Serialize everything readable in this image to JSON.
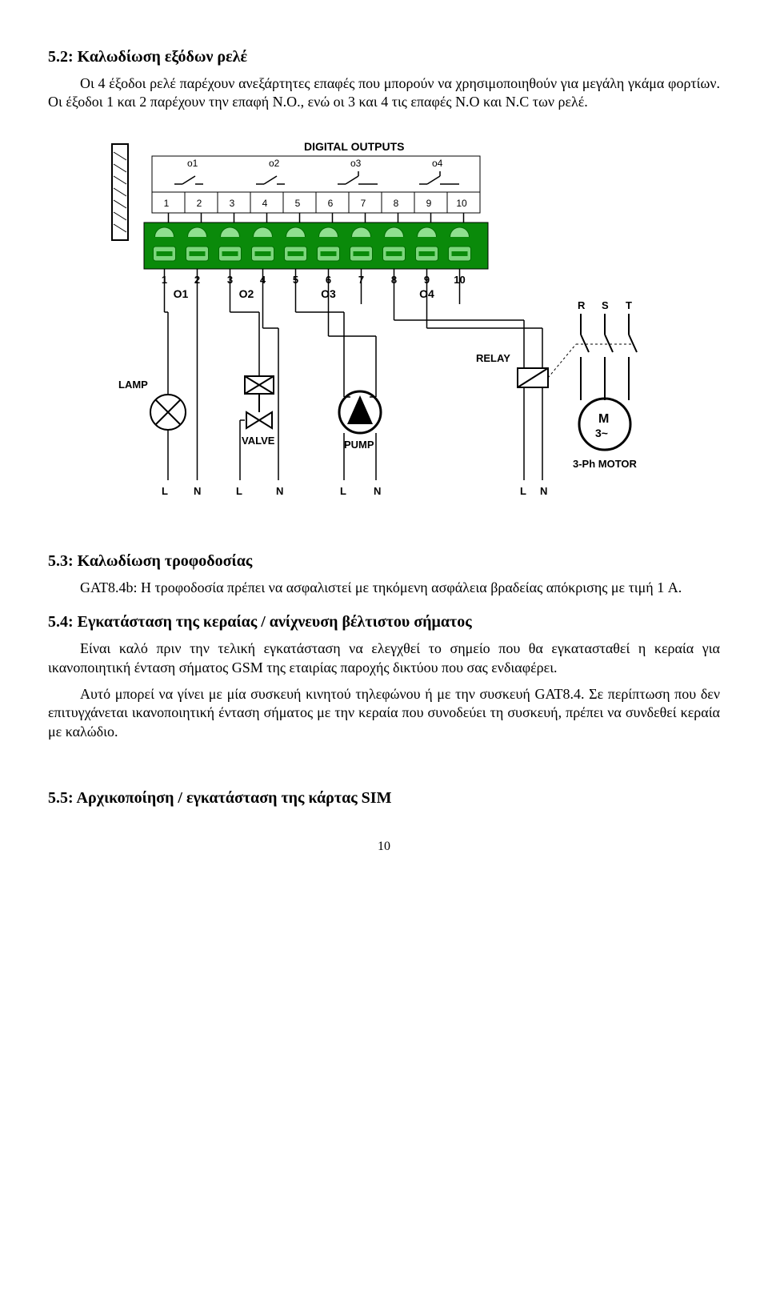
{
  "section_5_2": {
    "title": "5.2: Καλωδίωση εξόδων ρελέ",
    "para": "Οι 4 έξοδοι ρελέ παρέχουν ανεξάρτητες επαφές που μπορούν να χρησιμοποιηθούν για μεγάλη γκάμα φορτίων. Οι έξοδοι 1 και 2 παρέχουν την επαφή N.O., ενώ οι 3 και 4 τις επαφές N.O και N.C των ρελέ."
  },
  "diagram": {
    "title": "DIGITAL OUTPUTS",
    "relay_top_labels": [
      "o1",
      "o2",
      "o3",
      "o4"
    ],
    "relay_terminals": [
      "1",
      "2",
      "3",
      "4",
      "5",
      "6",
      "7",
      "8",
      "9",
      "10"
    ],
    "green_block_color": "#0a8a0a",
    "green_block_slot_color": "#7cd67c",
    "green_block_arc_color": "#8fe08f",
    "bottom_labels": [
      "1",
      "2",
      "3",
      "4",
      "5",
      "6",
      "7",
      "8",
      "9",
      "10"
    ],
    "output_labels": [
      "O1",
      "O2",
      "O3",
      "O4"
    ],
    "loads": {
      "lamp": "LAMP",
      "valve": "VALVE",
      "pump": "PUMP",
      "relay": "RELAY",
      "motor_top": "M",
      "motor_bottom": "3~",
      "motor_label": "3-Ph MOTOR"
    },
    "ln_labels": {
      "L": "L",
      "N": "N"
    },
    "rst_labels": [
      "R",
      "S",
      "T"
    ],
    "colors": {
      "line": "#000000",
      "text": "#000000",
      "bg": "#ffffff",
      "border": "#000000"
    }
  },
  "section_5_3": {
    "title": "5.3: Καλωδίωση τροφοδοσίας",
    "para": "GAT8.4b: Η τροφοδοσία πρέπει να ασφαλιστεί με τηκόμενη ασφάλεια βραδείας απόκρισης με τιμή 1 A."
  },
  "section_5_4": {
    "title": "5.4: Εγκατάσταση της κεραίας / ανίχνευση βέλτιστου σήματος",
    "para1": "Είναι καλό πριν την τελική εγκατάσταση να ελεγχθεί το σημείο που θα εγκατασταθεί η κεραία για ικανοποιητική ένταση σήματος GSM της εταιρίας παροχής δικτύου που σας ενδιαφέρει.",
    "para2": "Αυτό μπορεί να γίνει με μία συσκευή κινητού τηλεφώνου ή με την συσκευή GAT8.4. Σε περίπτωση που δεν επιτυγχάνεται ικανοποιητική ένταση σήματος με την κεραία που συνοδεύει τη συσκευή, πρέπει να συνδεθεί κεραία με καλώδιο."
  },
  "section_5_5": {
    "title": "5.5: Αρχικοποίηση / εγκατάσταση της κάρτας SIM"
  },
  "page_number": "10"
}
